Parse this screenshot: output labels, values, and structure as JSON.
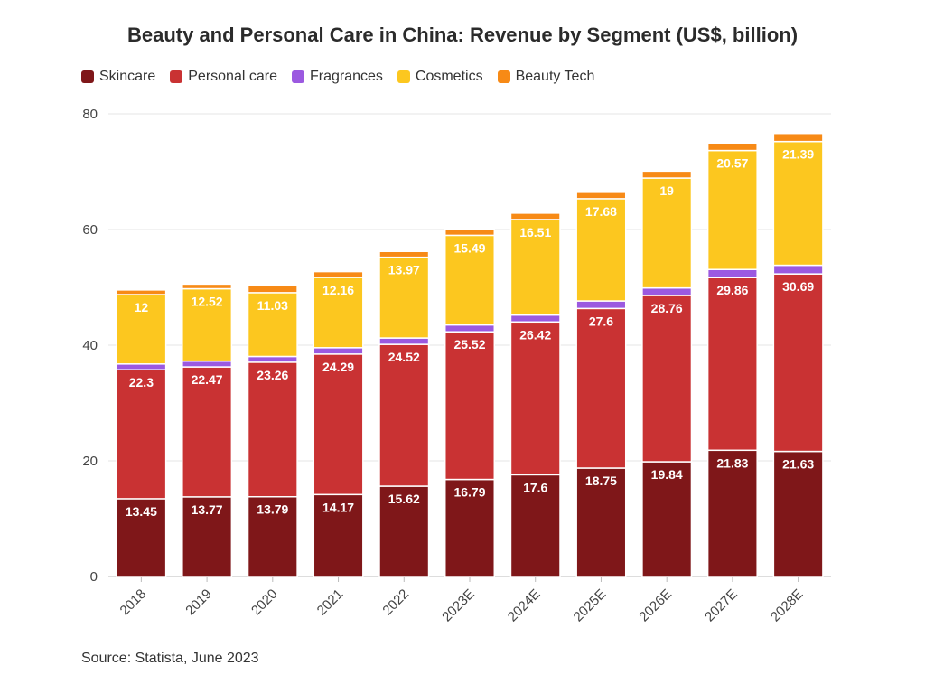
{
  "title": "Beauty and Personal Care in China: Revenue by Segment (US$, billion)",
  "source": "Source: Statista, June 2023",
  "chart_data": {
    "type": "bar",
    "stacked": true,
    "title": "Beauty and Personal Care in China: Revenue by Segment (US$, billion)",
    "categories": [
      "2018",
      "2019",
      "2020",
      "2021",
      "2022",
      "2023E",
      "2024E",
      "2025E",
      "2026E",
      "2027E",
      "2028E"
    ],
    "ylim": [
      0,
      80
    ],
    "yticks": [
      0,
      20,
      40,
      60,
      80
    ],
    "grid": true,
    "legend_position": "top-left",
    "series": [
      {
        "name": "Skincare",
        "color": "#7f1719",
        "labeled": true,
        "values": [
          13.45,
          13.77,
          13.79,
          14.17,
          15.62,
          16.79,
          17.6,
          18.75,
          19.84,
          21.83,
          21.63
        ]
      },
      {
        "name": "Personal care",
        "color": "#c93233",
        "labeled": true,
        "values": [
          22.3,
          22.47,
          23.26,
          24.29,
          24.52,
          25.52,
          26.42,
          27.6,
          28.76,
          29.86,
          30.69
        ]
      },
      {
        "name": "Fragrances",
        "color": "#9b59e0",
        "labeled": false,
        "values": [
          1.0,
          1.0,
          1.0,
          1.1,
          1.1,
          1.2,
          1.2,
          1.3,
          1.3,
          1.4,
          1.5
        ]
      },
      {
        "name": "Cosmetics",
        "color": "#fcc71f",
        "labeled": true,
        "values": [
          12,
          12.52,
          11.03,
          12.16,
          13.97,
          15.49,
          16.51,
          17.68,
          19,
          20.57,
          21.39
        ]
      },
      {
        "name": "Beauty Tech",
        "color": "#f78a16",
        "labeled": false,
        "values": [
          0.8,
          0.8,
          1.2,
          1.0,
          1.0,
          1.0,
          1.1,
          1.1,
          1.2,
          1.3,
          1.4
        ]
      }
    ]
  }
}
